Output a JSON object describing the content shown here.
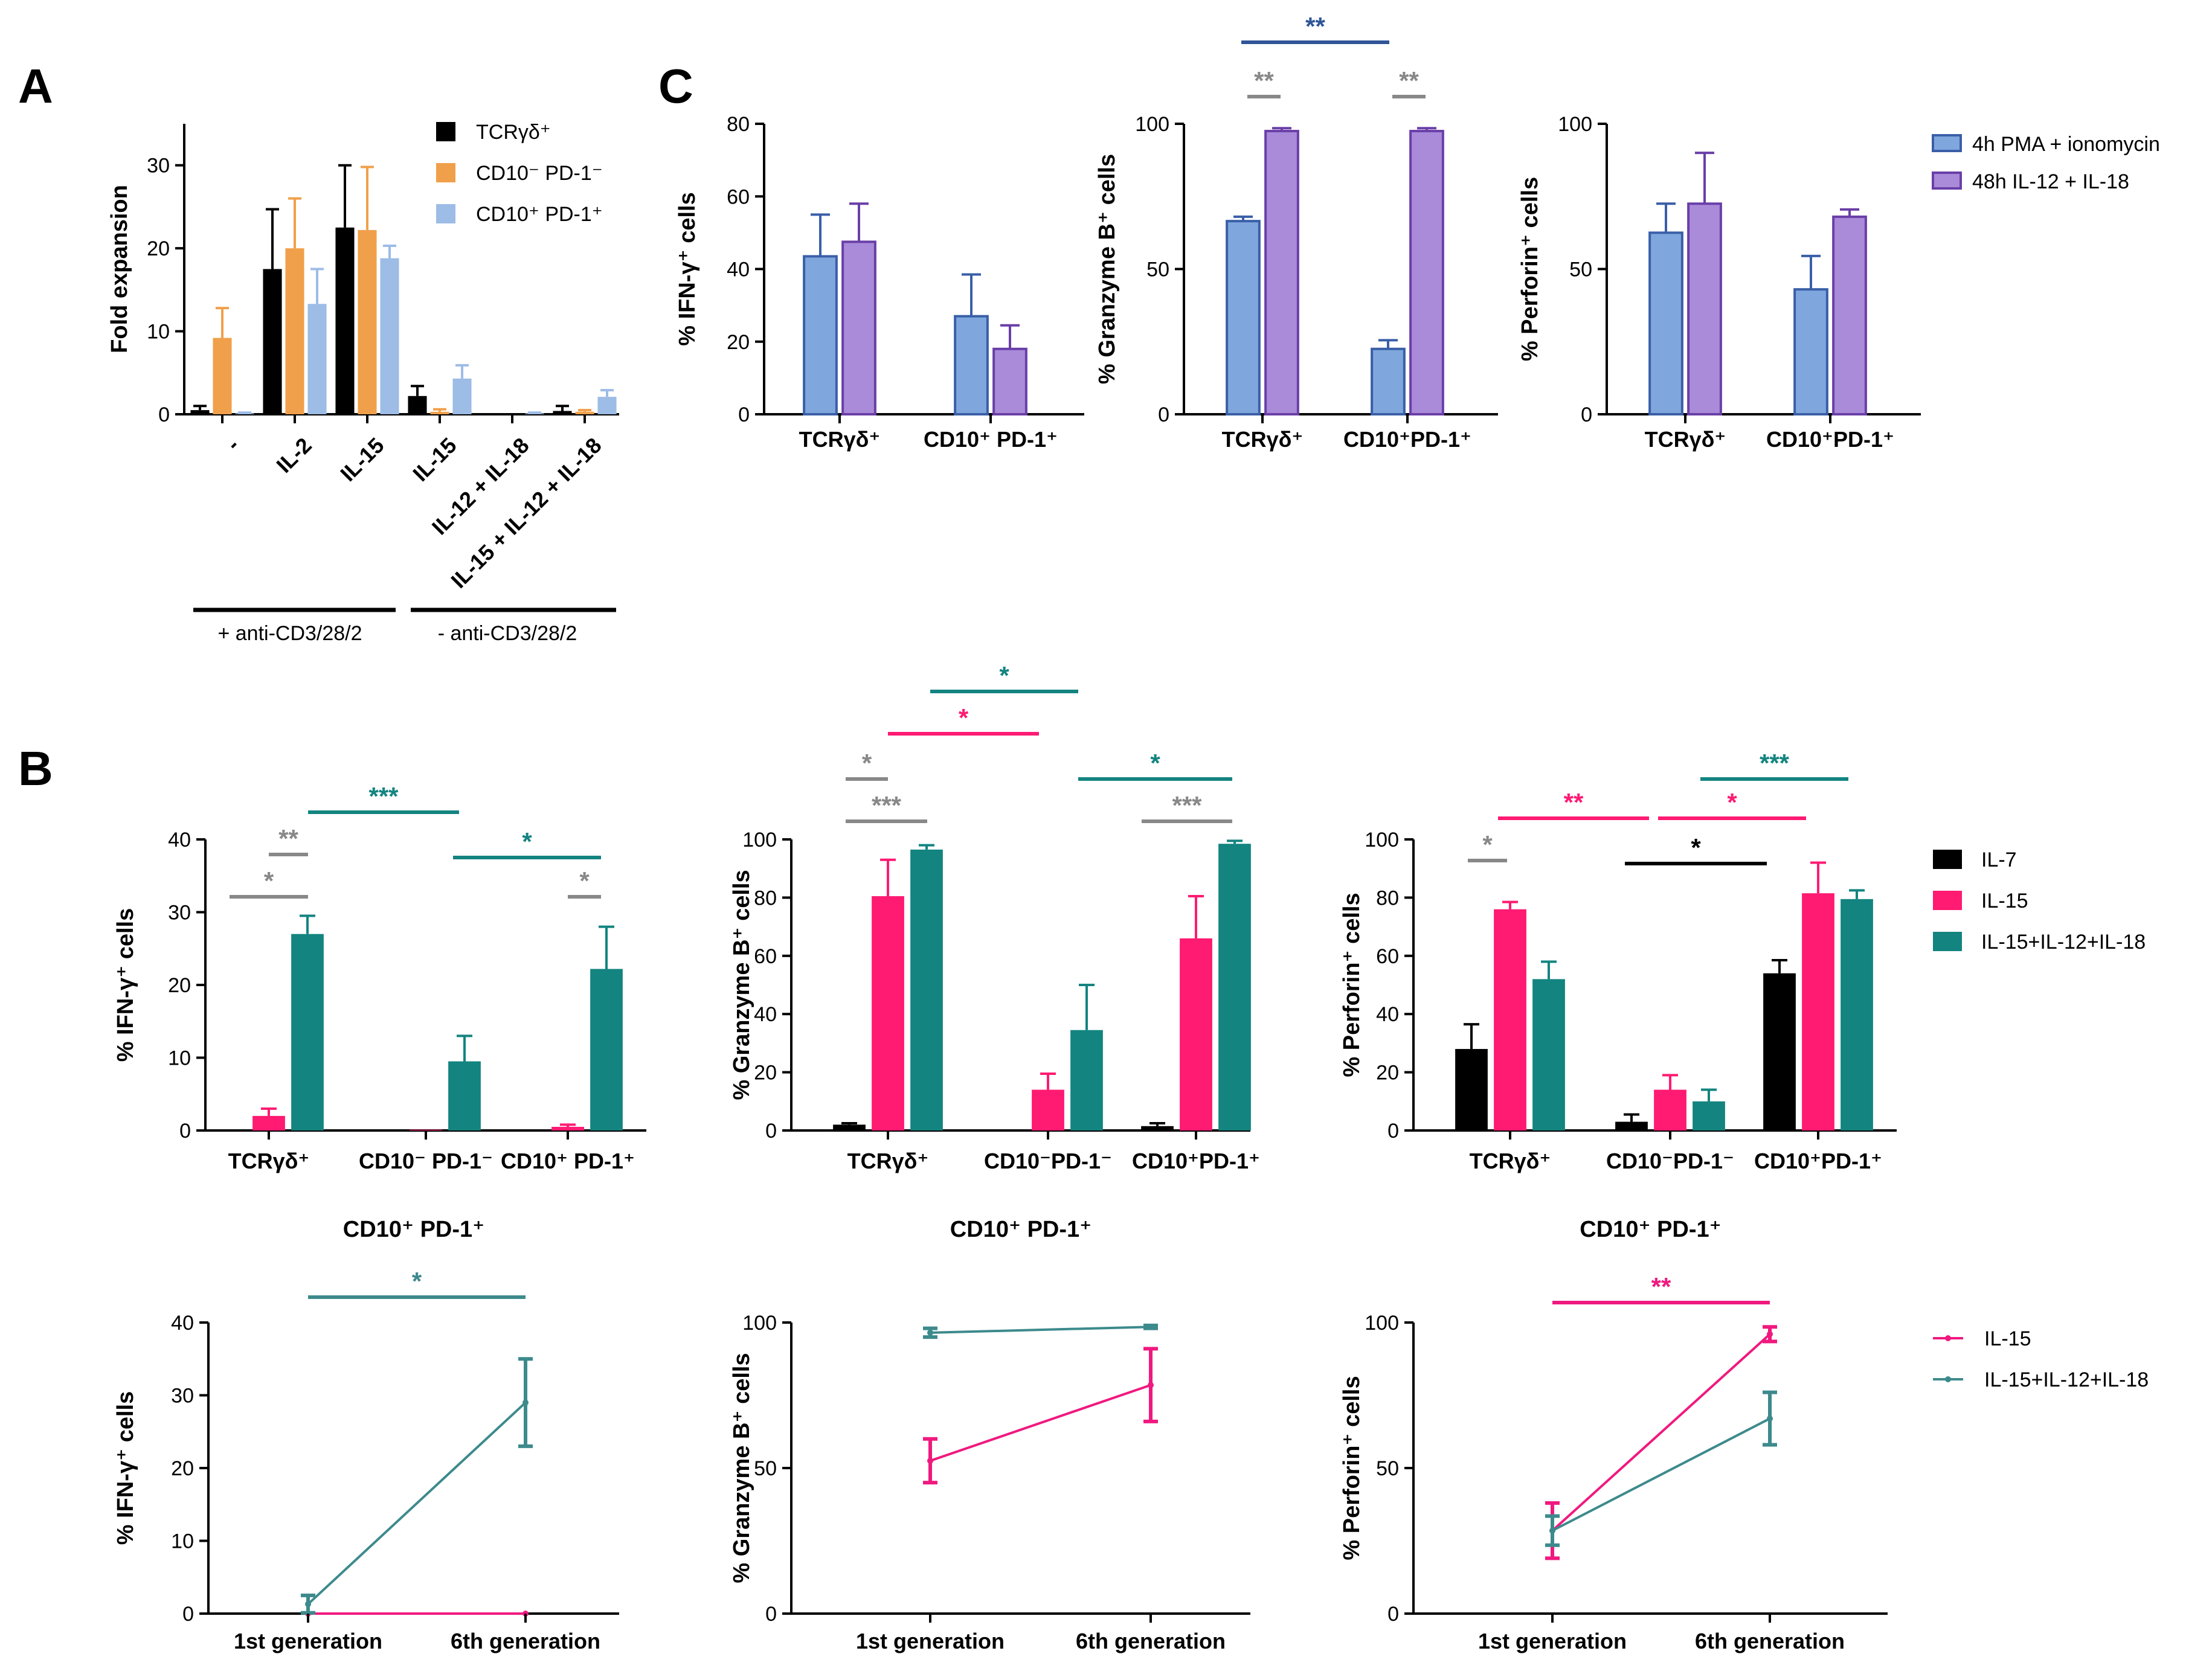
{
  "panel_letters": [
    "A",
    "C",
    "B"
  ],
  "colors": {
    "tcr": "#000000",
    "cd10neg": "#F0A04B",
    "cd10pos": "#9DBCE6",
    "pma": "#7FA7DD",
    "pma_edge": "#3A5FA8",
    "il12": "#A98BD9",
    "il12_edge": "#6A3FA8",
    "il7": "#000000",
    "il15": "#FF1A72",
    "combo": "#138480",
    "sig_grey": "#888888",
    "sig_blue": "#2F5597",
    "line_il15": "#F0197F",
    "line_combo": "#3D8A8C"
  },
  "chart_data": [
    {
      "id": "A",
      "type": "bar",
      "ylabel": "Fold expansion",
      "ylim": [
        0,
        35
      ],
      "yticks": [
        "0",
        "10",
        "20",
        "30"
      ],
      "categories": [
        "-",
        "IL-2",
        "IL-15",
        "IL-15",
        "IL-12 + IL-18",
        "IL-15 + IL-12 + IL-18"
      ],
      "series": [
        {
          "name": "TCRγδ⁺",
          "values": [
            0.5,
            17.5,
            22.5,
            2.2,
            0,
            0.4
          ],
          "err": [
            0.5,
            7.2,
            7.5,
            1.2,
            0,
            0.6
          ]
        },
        {
          "name": "CD10⁻ PD-1⁻",
          "values": [
            9.2,
            20.0,
            22.2,
            0.3,
            0,
            0.3
          ],
          "err": [
            3.6,
            6.0,
            7.6,
            0.3,
            0,
            0.2
          ]
        },
        {
          "name": "CD10⁺ PD-1⁺",
          "values": [
            0.1,
            13.3,
            18.8,
            4.3,
            0.1,
            2.1
          ],
          "err": [
            0.1,
            4.2,
            1.5,
            1.6,
            0.1,
            0.8
          ]
        }
      ],
      "groups": [
        "+ anti-CD3/28/2",
        "- anti-CD3/28/2"
      ]
    },
    {
      "id": "C1",
      "type": "bar",
      "ylabel": "% IFN-γ⁺ cells",
      "ylim": [
        0,
        80
      ],
      "yticks": [
        "0",
        "20",
        "40",
        "60",
        "80"
      ],
      "categories": [
        "TCRγδ⁺",
        "CD10⁺ PD-1⁺"
      ],
      "series": [
        {
          "name": "4h PMA + ionomycin",
          "values": [
            43.5,
            27
          ],
          "err": [
            11.5,
            11.5
          ]
        },
        {
          "name": "48h IL-12 + IL-18",
          "values": [
            47.5,
            18
          ],
          "err": [
            10.5,
            6.5
          ]
        }
      ]
    },
    {
      "id": "C2",
      "type": "bar",
      "ylabel": "% Granzyme B⁺ cells",
      "ylim": [
        0,
        100
      ],
      "yticks": [
        "0",
        "50",
        "100"
      ],
      "categories": [
        "TCRγδ⁺",
        "CD10⁺PD-1⁺"
      ],
      "series": [
        {
          "name": "4h PMA + ionomycin",
          "values": [
            66.5,
            22.5
          ],
          "err": [
            1.5,
            3
          ]
        },
        {
          "name": "48h IL-12 + IL-18",
          "values": [
            97.5,
            97.5
          ],
          "err": [
            1,
            1
          ]
        }
      ],
      "significance": [
        "**",
        "**",
        "**"
      ]
    },
    {
      "id": "C3",
      "type": "bar",
      "ylabel": "% Perforin⁺ cells",
      "ylim": [
        0,
        100
      ],
      "yticks": [
        "0",
        "50",
        "100"
      ],
      "categories": [
        "TCRγδ⁺",
        "CD10⁺PD-1⁺"
      ],
      "series": [
        {
          "name": "4h PMA + ionomycin",
          "values": [
            62.5,
            43
          ],
          "err": [
            10,
            11.5
          ]
        },
        {
          "name": "48h IL-12 + IL-18",
          "values": [
            72.5,
            68
          ],
          "err": [
            17.5,
            2.5
          ]
        }
      ],
      "legend": [
        "4h PMA + ionomycin",
        "48h IL-12 + IL-18"
      ]
    },
    {
      "id": "B1",
      "type": "bar",
      "ylabel": "% IFN-γ⁺ cells",
      "ylim": [
        0,
        40
      ],
      "yticks": [
        "0",
        "10",
        "20",
        "30",
        "40"
      ],
      "categories": [
        "TCRγδ⁺",
        "CD10⁻ PD-1⁻",
        "CD10⁺ PD-1⁺"
      ],
      "series": [
        {
          "name": "IL-7",
          "values": [
            0,
            0,
            0
          ],
          "err": [
            0,
            0,
            0
          ]
        },
        {
          "name": "IL-15",
          "values": [
            2,
            0.1,
            0.5
          ],
          "err": [
            1,
            0,
            0.3
          ]
        },
        {
          "name": "IL-15+IL-12+IL-18",
          "values": [
            27,
            9.5,
            22.2
          ],
          "err": [
            2.5,
            3.5,
            5.8
          ]
        }
      ],
      "significance": [
        "*",
        "**",
        "***",
        "*",
        "*"
      ]
    },
    {
      "id": "B2",
      "type": "bar",
      "ylabel": "% Granzyme B⁺ cells",
      "ylim": [
        0,
        100
      ],
      "yticks": [
        "0",
        "20",
        "40",
        "60",
        "80",
        "100"
      ],
      "categories": [
        "TCRγδ⁺",
        "CD10⁻PD-1⁻",
        "CD10⁺PD-1⁺"
      ],
      "series": [
        {
          "name": "IL-7",
          "values": [
            2,
            0,
            1.5
          ],
          "err": [
            0.5,
            0,
            1
          ]
        },
        {
          "name": "IL-15",
          "values": [
            80.5,
            14,
            66
          ],
          "err": [
            12.5,
            5.5,
            14.5
          ]
        },
        {
          "name": "IL-15+IL-12+IL-18",
          "values": [
            96.5,
            34.5,
            98.5
          ],
          "err": [
            1.5,
            15.5,
            1
          ]
        }
      ],
      "significance": [
        "*",
        "***",
        "*",
        "*",
        "*",
        "***"
      ]
    },
    {
      "id": "B3",
      "type": "bar",
      "ylabel": "% Perforin⁺ cells",
      "ylim": [
        0,
        100
      ],
      "yticks": [
        "0",
        "20",
        "40",
        "60",
        "80",
        "100"
      ],
      "categories": [
        "TCRγδ⁺",
        "CD10⁻PD-1⁻",
        "CD10⁺PD-1⁺"
      ],
      "series": [
        {
          "name": "IL-7",
          "values": [
            28,
            3,
            54
          ],
          "err": [
            8.5,
            2.5,
            4.5
          ]
        },
        {
          "name": "IL-15",
          "values": [
            76,
            14,
            81.5
          ],
          "err": [
            2.5,
            5,
            10.5
          ]
        },
        {
          "name": "IL-15+IL-12+IL-18",
          "values": [
            52,
            10,
            79.5
          ],
          "err": [
            6,
            4,
            3
          ]
        }
      ],
      "significance": [
        "*",
        "**",
        "*",
        "***",
        "*"
      ],
      "legend": [
        "IL-7",
        "IL-15",
        "IL-15+IL-12+IL-18"
      ]
    },
    {
      "id": "L1",
      "type": "line",
      "title": "CD10⁺ PD-1⁺",
      "ylabel": "% IFN-γ⁺ cells",
      "ylim": [
        0,
        40
      ],
      "yticks": [
        "0",
        "10",
        "20",
        "30",
        "40"
      ],
      "categories": [
        "1st generation",
        "6th generation"
      ],
      "series": [
        {
          "name": "IL-15",
          "values": [
            0,
            0
          ],
          "err": [
            0,
            0
          ]
        },
        {
          "name": "IL-15+IL-12+IL-18",
          "values": [
            1.3,
            29
          ],
          "err": [
            1.2,
            6
          ]
        }
      ],
      "significance": [
        "*"
      ]
    },
    {
      "id": "L2",
      "type": "line",
      "title": "CD10⁺ PD-1⁺",
      "ylabel": "% Granzyme B⁺ cells",
      "ylim": [
        0,
        100
      ],
      "yticks": [
        "0",
        "50",
        "100"
      ],
      "categories": [
        "1st generation",
        "6th generation"
      ],
      "series": [
        {
          "name": "IL-15",
          "values": [
            52.5,
            78.5
          ],
          "err": [
            7.5,
            12.5
          ]
        },
        {
          "name": "IL-15+IL-12+IL-18",
          "values": [
            96.5,
            98.5
          ],
          "err": [
            1.5,
            0.5
          ]
        }
      ]
    },
    {
      "id": "L3",
      "type": "line",
      "title": "CD10⁺ PD-1⁺",
      "ylabel": "% Perforin⁺ cells",
      "ylim": [
        0,
        100
      ],
      "yticks": [
        "0",
        "50",
        "100"
      ],
      "categories": [
        "1st generation",
        "6th generation"
      ],
      "series": [
        {
          "name": "IL-15",
          "values": [
            28.5,
            96
          ],
          "err": [
            9.5,
            2.5
          ]
        },
        {
          "name": "IL-15+IL-12+IL-18",
          "values": [
            28.5,
            67
          ],
          "err": [
            5,
            9
          ]
        }
      ],
      "significance": [
        "**"
      ],
      "legend": [
        "IL-15",
        "IL-15+IL-12+IL-18"
      ]
    }
  ]
}
